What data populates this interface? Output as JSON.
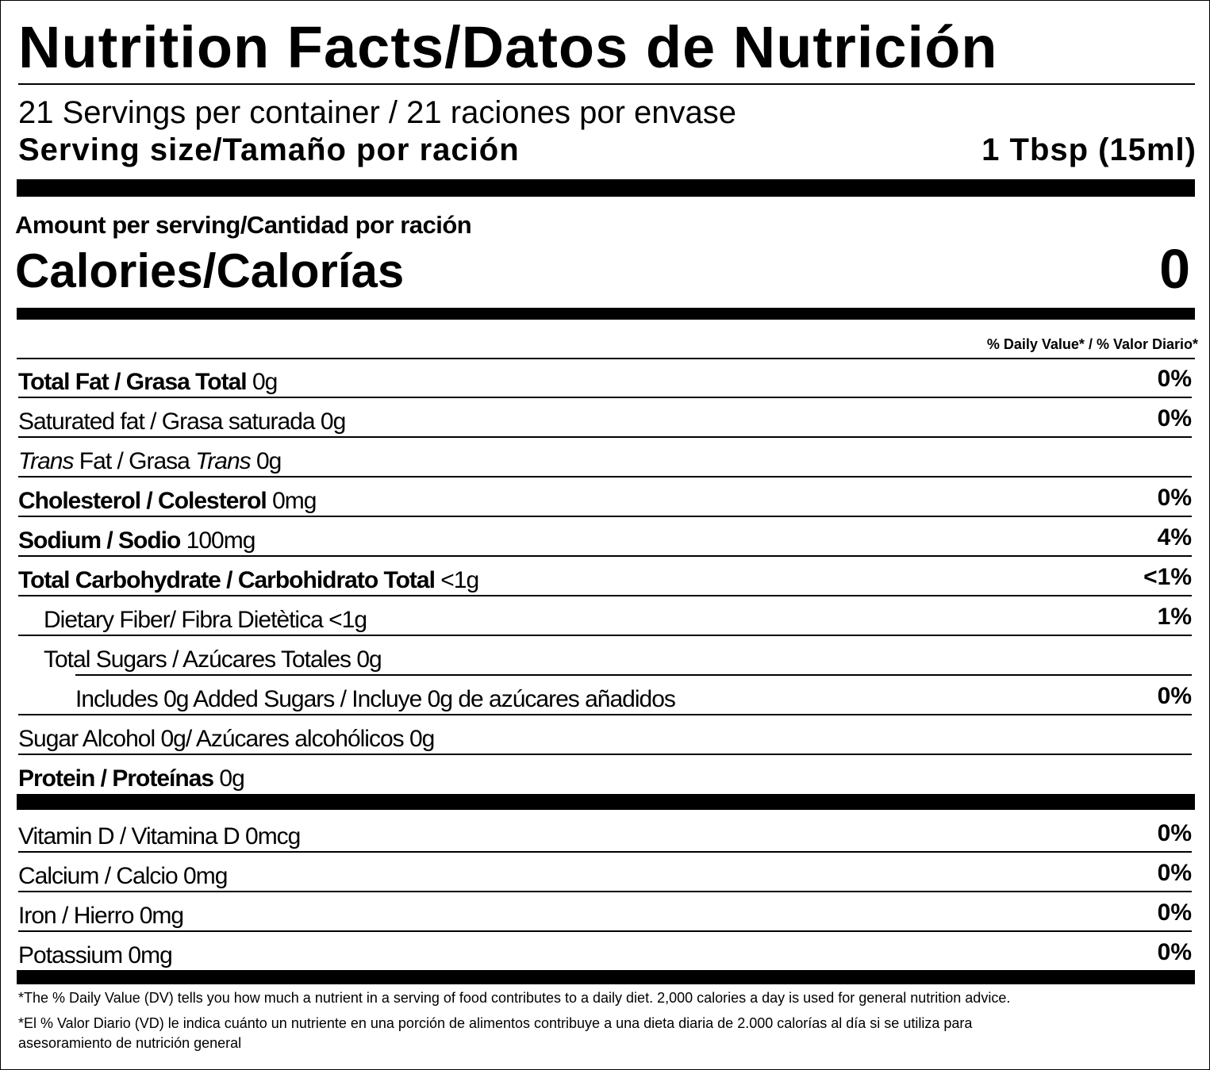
{
  "header": {
    "title": "Nutrition Facts/Datos de Nutrición",
    "servings": "21 Servings per container / 21 raciones por envase",
    "serving_size_label": "Serving size/Tamaño por ración",
    "serving_size_value": "1 Tbsp (15ml)"
  },
  "amount_label": "Amount per serving/Cantidad por ración",
  "calories": {
    "label": "Calories/Calorías",
    "value": "0"
  },
  "dv_header": "% Daily Value* / % Valor Diario*",
  "nutrients": [
    {
      "parts": [
        {
          "text": "Total Fat / Grasa Total",
          "style": "bold"
        },
        {
          "text": " 0g",
          "style": "normal"
        }
      ],
      "dv": "0%"
    },
    {
      "parts": [
        {
          "text": "Saturated fat / Grasa saturada 0g",
          "style": "normal"
        }
      ],
      "dv": "0%"
    },
    {
      "parts": [
        {
          "text": "Trans",
          "style": "italic"
        },
        {
          "text": " Fat / Grasa ",
          "style": "normal"
        },
        {
          "text": "Trans",
          "style": "italic"
        },
        {
          "text": " 0g",
          "style": "normal"
        }
      ]
    },
    {
      "parts": [
        {
          "text": "Cholesterol / Colesterol",
          "style": "bold"
        },
        {
          "text": " 0mg",
          "style": "normal"
        }
      ],
      "dv": "0%"
    },
    {
      "parts": [
        {
          "text": "Sodium / Sodio",
          "style": "bold"
        },
        {
          "text": " 100mg",
          "style": "normal"
        }
      ],
      "dv": "4%"
    },
    {
      "parts": [
        {
          "text": "Total Carbohydrate / Carbohidrato Total",
          "style": "bold"
        },
        {
          "text": " <1g",
          "style": "normal"
        }
      ],
      "dv": "<1%"
    },
    {
      "parts": [
        {
          "text": "Dietary Fiber/ Fibra Dietètica  <1g",
          "style": "normal"
        }
      ],
      "dv": "1%"
    },
    {
      "parts": [
        {
          "text": "Total Sugars / Azúcares Totales 0g",
          "style": "normal"
        }
      ]
    },
    {
      "parts": [
        {
          "text": "Includes 0g Added Sugars / Incluye 0g de azúcares añadidos",
          "style": "normal"
        }
      ],
      "dv": "0%"
    },
    {
      "parts": [
        {
          "text": "Sugar Alcohol 0g/ Azúcares alcohólicos 0g",
          "style": "normal"
        }
      ]
    },
    {
      "parts": [
        {
          "text": "Protein / Proteínas",
          "style": "bold"
        },
        {
          "text": " 0g",
          "style": "normal"
        }
      ]
    }
  ],
  "vitamins": [
    {
      "parts": [
        {
          "text": "Vitamin D / Vitamina D  0mcg",
          "style": "normal"
        }
      ],
      "dv": "0%"
    },
    {
      "parts": [
        {
          "text": "Calcium / Calcio  0mg",
          "style": "normal"
        }
      ],
      "dv": "0%"
    },
    {
      "parts": [
        {
          "text": "Iron / Hierro 0mg",
          "style": "normal"
        }
      ],
      "dv": "0%"
    },
    {
      "parts": [
        {
          "text": "Potassium 0mg",
          "style": "normal"
        }
      ],
      "dv": "0%"
    }
  ],
  "footnotes": [
    "*The % Daily Value (DV) tells you how much a nutrient in a serving of food contributes to a daily diet. 2,000 calories a day is used for general nutrition advice.",
    "*El % Valor Diario (VD) le indica cuánto un nutriente en una porción de alimentos contribuye a una dieta diaria de 2.000 calorías al día si se utiliza para",
    "asesoramiento de nutrición general"
  ]
}
